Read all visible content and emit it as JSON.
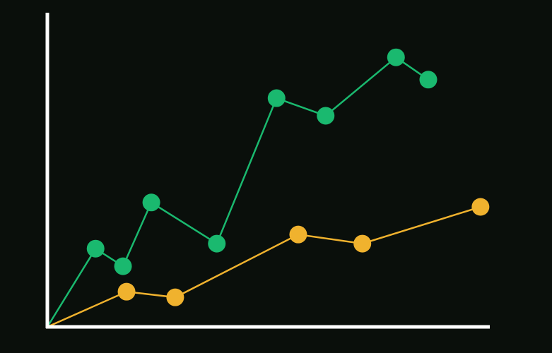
{
  "chart_data": {
    "type": "line",
    "title": "",
    "xlabel": "",
    "ylabel": "",
    "xlim": [
      0,
      100
    ],
    "ylim": [
      0,
      100
    ],
    "grid": false,
    "background": "#0a0f0b",
    "axis_color": "#ffffff",
    "series": [
      {
        "color": "#1ab96f",
        "x": [
          0,
          10.9,
          17.1,
          23.5,
          38.3,
          51.8,
          62.9,
          78.8,
          86.1
        ],
        "y": [
          0,
          24.9,
          19.3,
          39.6,
          26.5,
          72.8,
          67.2,
          85.8,
          78.7
        ],
        "markers": [
          false,
          true,
          true,
          true,
          true,
          true,
          true,
          true,
          true
        ]
      },
      {
        "color": "#f0b22e",
        "x": [
          0,
          17.9,
          28.9,
          56.7,
          71.2,
          97.9
        ],
        "y": [
          0,
          11.2,
          9.4,
          29.4,
          26.5,
          38.2
        ],
        "markers": [
          false,
          true,
          true,
          true,
          true,
          true
        ]
      }
    ]
  }
}
